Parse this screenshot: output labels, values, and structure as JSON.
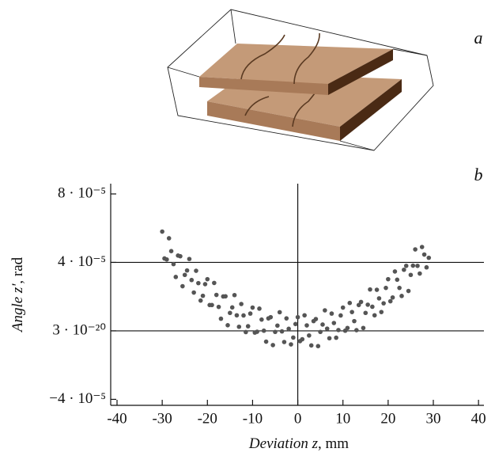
{
  "chart_data": {
    "type": "scatter",
    "panel_a_label": "a",
    "panel_b_label": "b",
    "xlabel_italic": "Deviation z",
    "xlabel_unit": ", mm",
    "ylabel_italic": "Angle z'",
    "ylabel_unit": ", rad",
    "color": "#555555",
    "grid": true,
    "zero_line_x": true,
    "xlim": [
      -41.4,
      41.2
    ],
    "xticks": [
      -40,
      -30,
      -20,
      -10,
      0,
      10,
      20,
      30,
      40
    ],
    "ylim": [
      -4.35e-05,
      8.6e-05
    ],
    "yticks": [
      {
        "value": -4e-05,
        "label": "−4 · 10⁻⁵"
      },
      {
        "value": 3e-20,
        "label": "3 · 10⁻²⁰"
      },
      {
        "value": 4e-05,
        "label": "4 · 10⁻⁵"
      },
      {
        "value": 8e-05,
        "label": "8 · 10⁻⁵"
      }
    ],
    "x": [
      -30,
      -29,
      -28,
      -27,
      -26,
      -25,
      -24,
      -23,
      -22,
      -21,
      -20,
      -19,
      -18,
      -17,
      -16,
      -15,
      -14,
      -13,
      -12,
      -11,
      -10,
      -9,
      -8,
      -7,
      -6,
      -5,
      -4,
      -3,
      -2,
      -1,
      0,
      1,
      2,
      3,
      4,
      5,
      6,
      7,
      8,
      9,
      10,
      11,
      12,
      13,
      14,
      15,
      16,
      17,
      18,
      19,
      20,
      21,
      22,
      23,
      24,
      25,
      26,
      27,
      28,
      29,
      -29.5,
      -28.5,
      -27.5,
      -26.5,
      -25.5,
      -24.5,
      -23.5,
      -22.5,
      -21.5,
      -20.5,
      -19.5,
      -18.5,
      -17.5,
      -16.5,
      -15.5,
      -14.5,
      -13.5,
      -12.5,
      -11.5,
      -10.5,
      -9.5,
      -8.5,
      -7.5,
      -6.5,
      -5.5,
      -4.5,
      -3.5,
      -2.5,
      -1.5,
      -0.5,
      0.5,
      1.5,
      2.5,
      3.5,
      4.5,
      5.5,
      6.5,
      7.5,
      8.5,
      9.5,
      10.5,
      11.5,
      12.5,
      13.5,
      14.5,
      15.5,
      16.5,
      17.5,
      18.5,
      19.5,
      20.5,
      21.5,
      22.5,
      23.5,
      24.5,
      25.5,
      26.5,
      27.5,
      28.5
    ],
    "values": [
      5.8e-05,
      4.17e-05,
      4.66e-05,
      3.15e-05,
      4.36e-05,
      3.27e-05,
      4.2e-05,
      2.24e-05,
      2.79e-05,
      2.05e-05,
      3.02e-05,
      1.51e-05,
      2.1e-05,
      7.1e-06,
      2.02e-05,
      1.05e-05,
      2.09e-05,
      2.4e-06,
      9e-06,
      2.7e-06,
      1.36e-05,
      -5e-07,
      6.6e-06,
      -6.3e-06,
      8e-06,
      -6e-07,
      1.09e-05,
      -6.5e-06,
      1.2e-06,
      -3.9e-06,
      8e-06,
      -4.9e-06,
      3.2e-06,
      -8.5e-06,
      6.9e-06,
      -6e-07,
      1.2e-05,
      -4.3e-06,
      4.6e-06,
      5e-07,
      1.36e-05,
      1.7e-06,
      1.1e-05,
      4e-07,
      1.69e-05,
      1.05e-05,
      2.42e-05,
      9.1e-06,
      1.9e-05,
      1.61e-05,
      3.02e-05,
      1.95e-05,
      2.99e-05,
      2.04e-05,
      3.8e-05,
      3.27e-05,
      4.76e-05,
      3.35e-05,
      4.46e-05,
      4.27e-05,
      4.23e-05,
      5.41e-05,
      3.9e-05,
      4.4e-05,
      2.61e-05,
      3.53e-05,
      2.97e-05,
      3.51e-05,
      1.77e-05,
      2.73e-05,
      1.51e-05,
      2.8e-05,
      1.4e-05,
      2.01e-05,
      3.3e-06,
      1.37e-05,
      9.1e-06,
      1.57e-05,
      -7e-07,
      1.01e-05,
      -1e-06,
      1.3e-05,
      1e-07,
      7.3e-06,
      -8.3e-06,
      3.1e-06,
      -3e-07,
      7.3e-06,
      -7.9e-06,
      4e-06,
      -6e-06,
      9.1e-06,
      -2.7e-06,
      5.7e-06,
      -8.9e-06,
      3.7e-06,
      1.3e-06,
      1.01e-05,
      -4e-06,
      9e-06,
      1e-07,
      1.63e-05,
      5.7e-06,
      1.51e-05,
      1.7e-06,
      1.53e-05,
      1.41e-05,
      2.4e-05,
      1.1e-05,
      2.51e-05,
      1.73e-05,
      3.47e-05,
      2.51e-05,
      3.57e-05,
      2.33e-05,
      3.81e-05,
      3.8e-05,
      4.9e-05,
      3.71e-05
    ]
  }
}
